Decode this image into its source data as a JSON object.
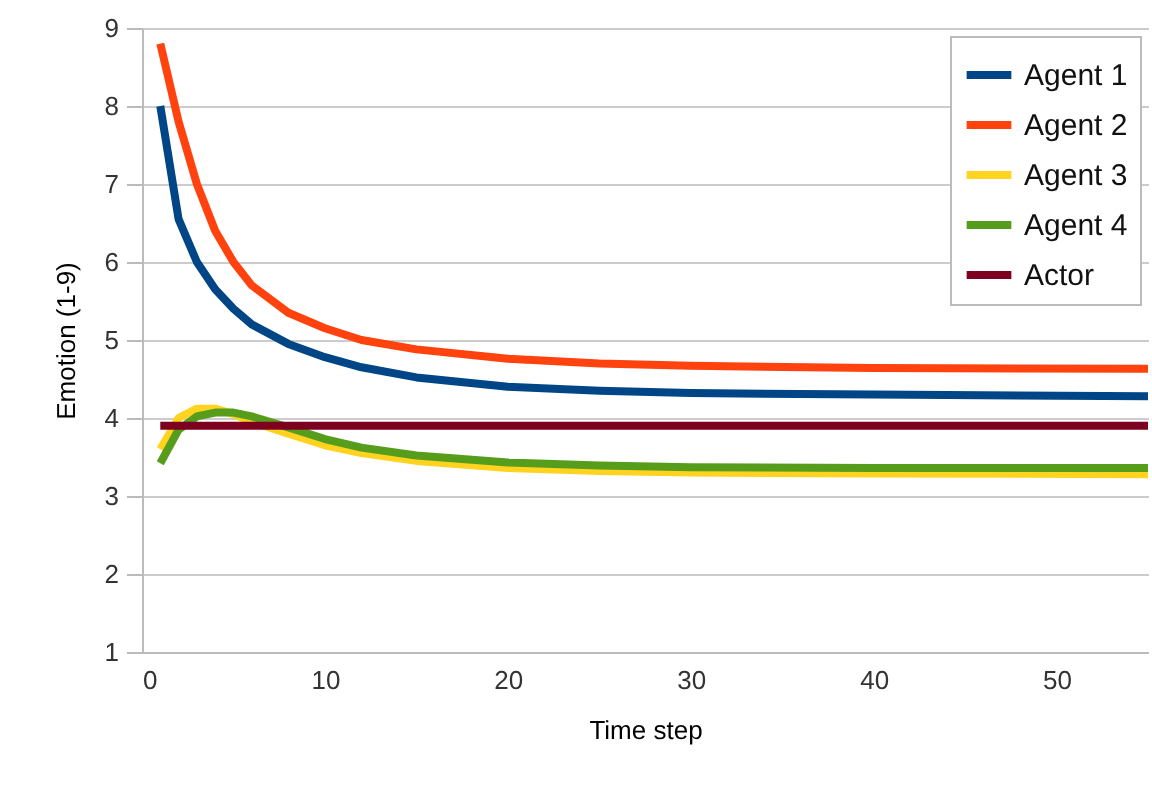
{
  "chart_data": {
    "type": "line",
    "xlabel": "Time step",
    "ylabel": "Emotion (1-9)",
    "xlim": [
      0,
      55
    ],
    "xticks": [
      0,
      10,
      20,
      30,
      40,
      50
    ],
    "ylim": [
      1,
      9
    ],
    "yticks": [
      1,
      2,
      3,
      4,
      5,
      6,
      7,
      8,
      9
    ],
    "grid": "y",
    "legend": "top right",
    "marker": "none",
    "line_style": "solid",
    "x": [
      1,
      2,
      3,
      4,
      5,
      6,
      8,
      10,
      12,
      15,
      20,
      25,
      30,
      40,
      55
    ],
    "series": [
      {
        "name": "Agent 1",
        "color": "#004586",
        "values": [
          8.0,
          6.55,
          6.0,
          5.65,
          5.4,
          5.2,
          4.95,
          4.78,
          4.65,
          4.52,
          4.4,
          4.35,
          4.32,
          4.3,
          4.28
        ]
      },
      {
        "name": "Agent 2",
        "color": "#ff420e",
        "values": [
          8.8,
          7.8,
          7.0,
          6.4,
          6.0,
          5.7,
          5.35,
          5.15,
          5.0,
          4.88,
          4.76,
          4.7,
          4.67,
          4.64,
          4.63
        ]
      },
      {
        "name": "Agent 3",
        "color": "#ffd320",
        "values": [
          3.6,
          4.0,
          4.12,
          4.12,
          4.05,
          3.95,
          3.8,
          3.65,
          3.55,
          3.45,
          3.36,
          3.32,
          3.3,
          3.29,
          3.28
        ]
      },
      {
        "name": "Agent 4",
        "color": "#579d1c",
        "values": [
          3.42,
          3.85,
          4.02,
          4.07,
          4.07,
          4.02,
          3.88,
          3.73,
          3.62,
          3.52,
          3.43,
          3.39,
          3.37,
          3.36,
          3.36
        ]
      },
      {
        "name": "Actor",
        "color": "#7e0021",
        "values": [
          3.9,
          3.9,
          3.9,
          3.9,
          3.9,
          3.9,
          3.9,
          3.9,
          3.9,
          3.9,
          3.9,
          3.9,
          3.9,
          3.9,
          3.9
        ]
      }
    ]
  }
}
